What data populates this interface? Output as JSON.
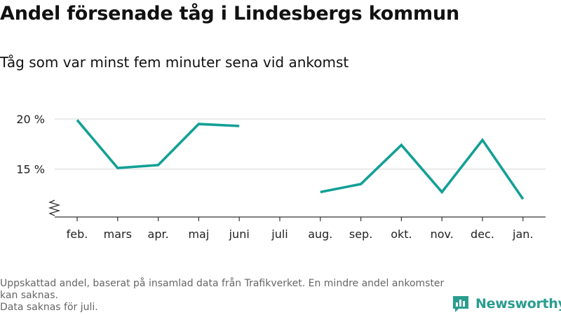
{
  "header": {
    "title": "Andel försenade tåg i Lindesbergs kommun",
    "subtitle": "Tåg som var minst fem minuter sena vid ankomst"
  },
  "footer": {
    "note_line1": "Uppskattad andel, baserat på insamlad data från Trafikverket. En mindre andel ankomster kan saknas.",
    "note_line2": "Data saknas för juli.",
    "brand": "Newsworthy"
  },
  "colors": {
    "series": "#13a096",
    "brand": "#2a9d8f",
    "grid": "#dddddd",
    "axis": "#333333"
  },
  "chart_data": {
    "type": "line",
    "title": "Andel försenade tåg i Lindesbergs kommun",
    "subtitle": "Tåg som var minst fem minuter sena vid ankomst",
    "categories": [
      "feb.",
      "mars",
      "apr.",
      "maj",
      "juni",
      "juli",
      "aug.",
      "sep.",
      "okt.",
      "nov.",
      "dec.",
      "jan."
    ],
    "series": [
      {
        "values": [
          19.9,
          15.1,
          15.4,
          19.5,
          19.3,
          null,
          12.7,
          13.5,
          17.4,
          12.7,
          17.9,
          12.0
        ]
      }
    ],
    "yticks": [
      15,
      20
    ],
    "ytick_labels": [
      "15 %",
      "20 %"
    ],
    "ylim": [
      10,
      20
    ],
    "axis_break": true,
    "grid": true
  }
}
